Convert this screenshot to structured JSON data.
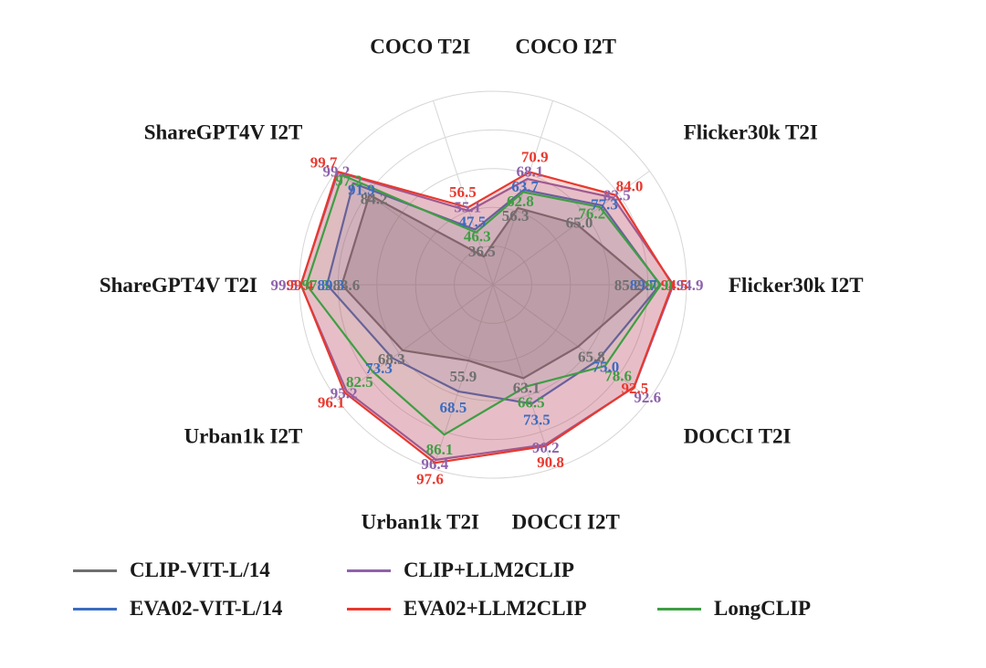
{
  "chart_data": {
    "type": "radar",
    "title": "",
    "categories": [
      "COCO T2I",
      "COCO I2T",
      "Flicker30k T2I",
      "Flicker30k I2T",
      "DOCCI T2I",
      "DOCCI I2T",
      "Urban1k T2I",
      "Urban1k I2T",
      "ShareGPT4V T2I",
      "ShareGPT4V I2T"
    ],
    "series": [
      {
        "name": "CLIP-VIT-L/14",
        "color": "#6f6f6f",
        "fill": "rgba(127,127,127,0.30)",
        "values": [
          36.5,
          56.3,
          65.0,
          85.2,
          65.8,
          63.1,
          55.9,
          68.3,
          83.6,
          84.2
        ]
      },
      {
        "name": "EVA02-VIT-L/14",
        "color": "#3b6cc0",
        "fill": "rgba(59,108,192,0.10)",
        "values": [
          47.5,
          63.7,
          77.3,
          89.7,
          75.0,
          73.5,
          68.5,
          73.3,
          89.3,
          91.9
        ]
      },
      {
        "name": "CLIP+LLM2CLIP",
        "color": "#8e62ab",
        "fill": "rgba(142,98,171,0.20)",
        "values": [
          55.1,
          68.1,
          82.5,
          94.9,
          92.6,
          90.2,
          96.4,
          95.2,
          99.5,
          99.2
        ]
      },
      {
        "name": "EVA02+LLM2CLIP",
        "color": "#e8392f",
        "fill": "rgba(232,57,47,0.20)",
        "values": [
          56.5,
          70.9,
          84.0,
          94.5,
          92.5,
          90.8,
          97.6,
          96.1,
          99.4,
          99.7
        ]
      },
      {
        "name": "LongCLIP",
        "color": "#3f9e44",
        "fill": "rgba(63,158,68,0.05)",
        "values": [
          46.3,
          62.8,
          76.2,
          90.0,
          78.6,
          66.5,
          86.1,
          82.5,
          97.3,
          97.2
        ]
      }
    ],
    "scale": {
      "min": 25,
      "max": 100,
      "rings": 5
    },
    "grid": true,
    "legend_position": "bottom",
    "legend_rows": [
      [
        "CLIP-VIT-L/14",
        "CLIP+LLM2CLIP"
      ],
      [
        "EVA02-VIT-L/14",
        "EVA02+LLM2CLIP",
        "LongCLIP"
      ]
    ]
  }
}
